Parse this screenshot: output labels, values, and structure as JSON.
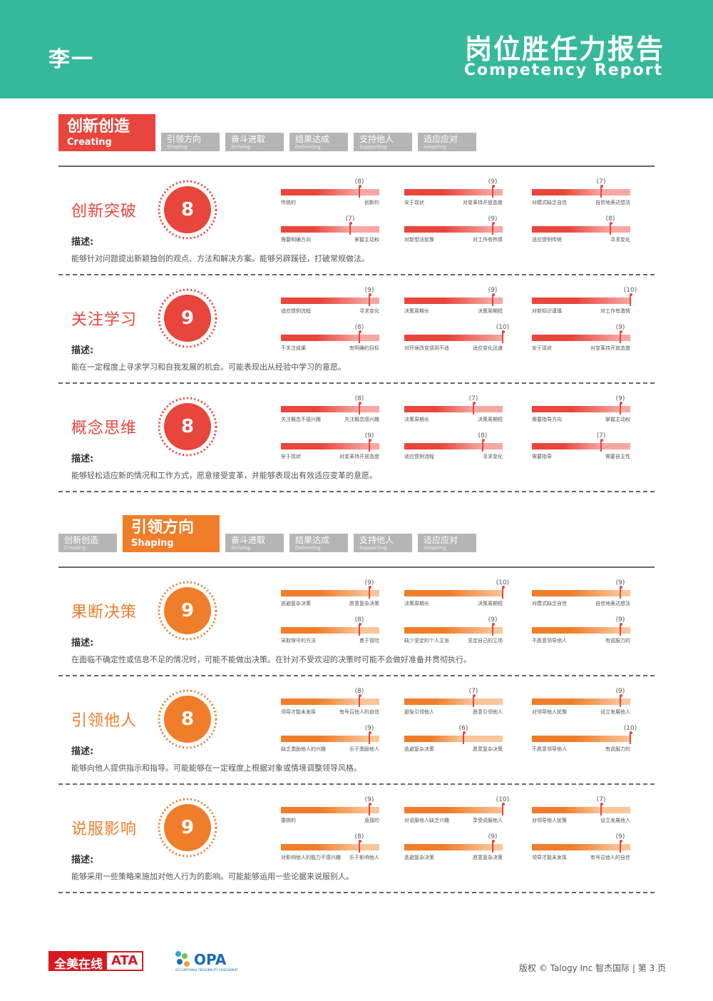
{
  "header": {
    "name": "李一",
    "title_cn": "岗位胜任力报告",
    "title_en": "Competency Report"
  },
  "tabs": [
    {
      "cn": "创新创造",
      "en": "Creating"
    },
    {
      "cn": "引领方向",
      "en": "Shaping"
    },
    {
      "cn": "奋斗进取",
      "en": "Striving"
    },
    {
      "cn": "结果达成",
      "en": "Delivering"
    },
    {
      "cn": "支持他人",
      "en": "Supporting"
    },
    {
      "cn": "适应应对",
      "en": "Adapting"
    }
  ],
  "desc_label": "描述:",
  "sections": [
    {
      "colors": {
        "main": "#e8453c",
        "light": "#f7a7a1"
      },
      "competencies": [
        {
          "name": "创新突破",
          "score": "8",
          "desc": "能够针对问题提出新颖独创的观点、方法和解决方案。能够另辟蹊径，打破常规做法。",
          "bars": [
            {
              "left": "传统的",
              "right": "创新的",
              "value": 8,
              "label": "(8)"
            },
            {
              "left": "安于现状",
              "right": "对变革持开放态度",
              "value": 9,
              "label": "(9)"
            },
            {
              "left": "对模式缺乏自信",
              "right": "自信地表达想法",
              "value": 7,
              "label": "(7)"
            },
            {
              "left": "需要明确方向",
              "right": "掌握主动权",
              "value": 7,
              "label": "(7)"
            },
            {
              "left": "对新想法犹豫",
              "right": "对工作有热情",
              "value": 9,
              "label": "(9)"
            },
            {
              "left": "适应惯例传统",
              "right": "寻求变化",
              "value": 8,
              "label": "(8)"
            }
          ]
        },
        {
          "name": "关注学习",
          "score": "9",
          "desc": "能在一定程度上寻求学习和自我发展的机会。可能表现出从经验中学习的意愿。",
          "bars": [
            {
              "left": "适应惯例流程",
              "right": "寻求变化",
              "value": 9,
              "label": "(9)"
            },
            {
              "left": "决策周期长",
              "right": "决策周期短",
              "value": 9,
              "label": "(9)"
            },
            {
              "left": "对新知识谨慎",
              "right": "对工作有激情",
              "value": 10,
              "label": "(10)"
            },
            {
              "left": "不关注成果",
              "right": "有明确的目标",
              "value": 8,
              "label": "(8)"
            },
            {
              "left": "对环境改变感到不适",
              "right": "适应变化迅速",
              "value": 10,
              "label": "(10)"
            },
            {
              "left": "安于现状",
              "right": "对变革持开放态度",
              "value": 9,
              "label": "(9)"
            }
          ]
        },
        {
          "name": "概念思维",
          "score": "8",
          "desc": "能够轻松适应新的情况和工作方式，愿意接受变革，并能够表现出有效适应变革的意愿。",
          "bars": [
            {
              "left": "关注概念不感兴趣",
              "right": "关注概念感兴趣",
              "value": 8,
              "label": "(8)"
            },
            {
              "left": "决策周期长",
              "right": "决策周期短",
              "value": 7,
              "label": "(7)"
            },
            {
              "left": "需要指导方向",
              "right": "掌握主动权",
              "value": 9,
              "label": "(9)"
            },
            {
              "left": "安于现状",
              "right": "对变革持开放态度",
              "value": 9,
              "label": "(9)"
            },
            {
              "left": "适应惯例流程",
              "right": "寻求变化",
              "value": 8,
              "label": "(8)"
            },
            {
              "left": "需要指导",
              "right": "需要自主性",
              "value": 7,
              "label": "(7)"
            }
          ]
        }
      ]
    },
    {
      "colors": {
        "main": "#f07d2a",
        "light": "#f9c59a"
      },
      "competencies": [
        {
          "name": "果断决策",
          "score": "9",
          "desc": "在面临不确定性或信息不足的情况时，可能不能做出决策。在针对不受欢迎的决策时可能不会做好准备并贯彻执行。",
          "bars": [
            {
              "left": "逃避复杂决策",
              "right": "愿意复杂决策",
              "value": 9,
              "label": "(9)"
            },
            {
              "left": "决策周期长",
              "right": "决策周期短",
              "value": 10,
              "label": "(10)"
            },
            {
              "left": "对模式缺乏自信",
              "right": "自信地表达想法",
              "value": 9,
              "label": "(9)"
            },
            {
              "left": "采取保守的方法",
              "right": "勇于冒险",
              "value": 8,
              "label": "(8)"
            },
            {
              "left": "缺少坚定的个人主张",
              "right": "坚定自己的立场",
              "value": 9,
              "label": "(9)"
            },
            {
              "left": "不愿意领导他人",
              "right": "有说服力的",
              "value": 9,
              "label": "(9)"
            }
          ]
        },
        {
          "name": "引领他人",
          "score": "8",
          "desc": "能够向他人提供指示和指导。可能能够在一定程度上根据对象或情境调整领导风格。",
          "bars": [
            {
              "left": "领导才能未发挥",
              "right": "有号召他人的自信",
              "value": 8,
              "label": "(8)"
            },
            {
              "left": "避免引领他人",
              "right": "愿意引领他人",
              "value": 7,
              "label": "(7)"
            },
            {
              "left": "对领导他人犹豫",
              "right": "设立发展他人",
              "value": 9,
              "label": "(9)"
            },
            {
              "left": "缺乏激励他人的兴趣",
              "right": "乐于激励他人",
              "value": 9,
              "label": "(9)"
            },
            {
              "left": "逃避复杂决策",
              "right": "愿意复杂决策",
              "value": 6,
              "label": "(6)"
            },
            {
              "left": "不愿意领导他人",
              "right": "有说服力的",
              "value": 10,
              "label": "(10)"
            }
          ]
        },
        {
          "name": "说服影响",
          "score": "9",
          "desc": "能够采用一些策略来施加对他人行为的影响。可能能够运用一些论据来说服别人。",
          "bars": [
            {
              "left": "委婉的",
              "right": "直接的",
              "value": 9,
              "label": "(9)"
            },
            {
              "left": "对说服他人缺乏兴趣",
              "right": "享受说服他人",
              "value": 10,
              "label": "(10)"
            },
            {
              "left": "对领导他人犹豫",
              "right": "设立发展他人",
              "value": 7,
              "label": "(7)"
            },
            {
              "left": "对影响他人的能力不感兴趣",
              "right": "乐于影响他人",
              "value": 8,
              "label": "(8)"
            },
            {
              "left": "逃避复杂决策",
              "right": "愿意复杂决策",
              "value": 9,
              "label": "(9)"
            },
            {
              "left": "领导才能未发挥",
              "right": "有号召他人的自信",
              "value": 9,
              "label": "(9)"
            }
          ]
        }
      ]
    }
  ],
  "footer": {
    "ata_cn": "全美在线",
    "ata_en": "ATA",
    "opa": "OPA",
    "opa_sub": "OCCUPATIONAL PERSONALITY ASSESSMENT",
    "copyright": "版权 © Talogy Inc  智杰国际  |  第 3 页"
  }
}
